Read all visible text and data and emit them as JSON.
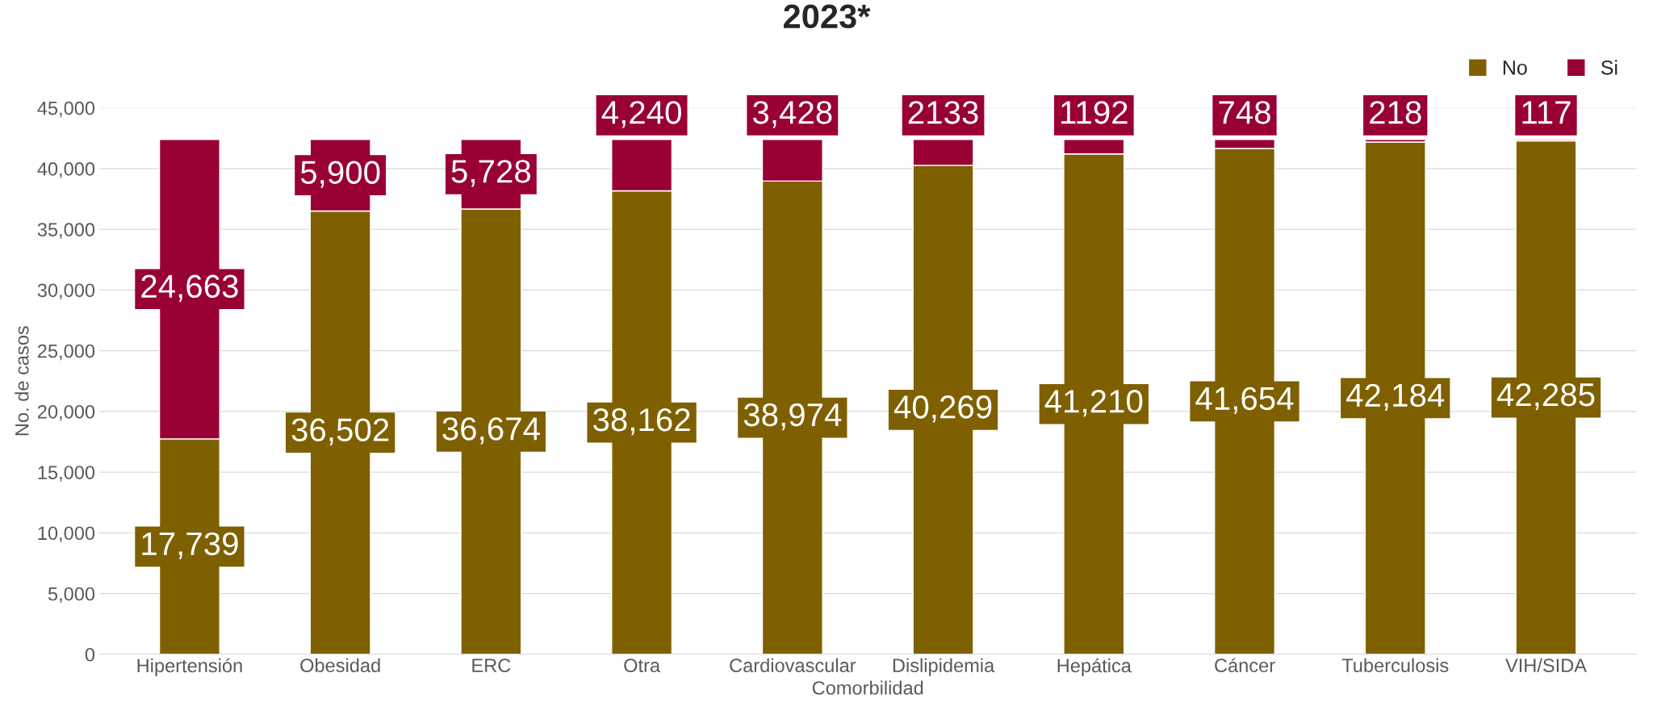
{
  "chart_data": {
    "type": "bar",
    "title": "2023*",
    "xlabel": "Comorbilidad",
    "ylabel": "No. de casos",
    "categories": [
      "Hipertensión",
      "Obesidad",
      "ERC",
      "Otra",
      "Cardiovascular",
      "Dislipidemia",
      "Hepática",
      "Cáncer",
      "Tuberculosis",
      "VIH/SIDA"
    ],
    "stacked": true,
    "series": [
      {
        "name": "No",
        "color": "#7f6000",
        "values": [
          17739,
          36502,
          36674,
          38162,
          38974,
          40269,
          41210,
          41654,
          42184,
          42285
        ],
        "value_labels": [
          "17,739",
          "36,502",
          "36,674",
          "38,162",
          "38,974",
          "40,269",
          "41,210",
          "41,654",
          "42,184",
          "42,285"
        ]
      },
      {
        "name": "Si",
        "color": "#990033",
        "values": [
          24663,
          5900,
          5728,
          4240,
          3428,
          2133,
          1192,
          748,
          218,
          117
        ],
        "value_labels": [
          "24,663",
          "5,900",
          "5,728",
          "4,240",
          "3,428",
          "2133",
          "1192",
          "748",
          "218",
          "117"
        ]
      }
    ],
    "ylim": [
      0,
      45000
    ],
    "yticks": [
      0,
      {
        "value": 5000,
        "label": "5,000"
      },
      {
        "value": 10000,
        "label": "10,000"
      },
      {
        "value": 15000,
        "label": "15,000"
      },
      {
        "value": 20000,
        "label": "20,000"
      },
      {
        "value": 25000,
        "label": "25,000"
      },
      {
        "value": 30000,
        "label": "30,000"
      },
      {
        "value": 35000,
        "label": "35,000"
      },
      {
        "value": 40000,
        "label": "40,000"
      },
      {
        "value": 45000,
        "label": "45,000"
      }
    ],
    "grid": "y",
    "legend": "top right"
  }
}
